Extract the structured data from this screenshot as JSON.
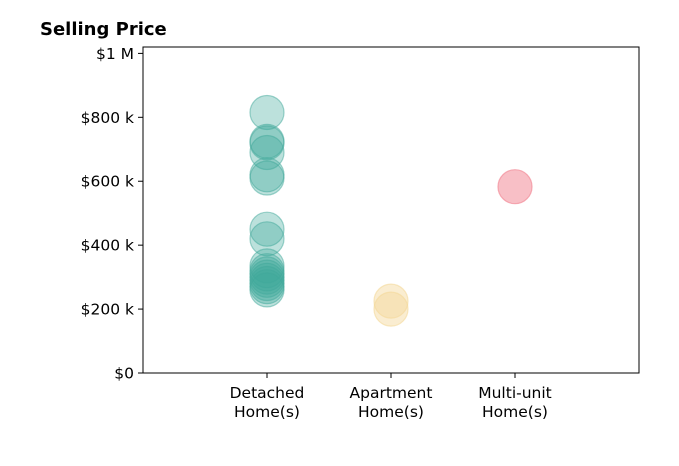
{
  "chart_data": {
    "type": "scatter",
    "title": "Selling Price",
    "xlabel": "",
    "ylabel": "",
    "categories": [
      [
        "Detached",
        "Home(s)"
      ],
      [
        "Apartment",
        "Home(s)"
      ],
      [
        "Multi-unit",
        "Home(s)"
      ]
    ],
    "y_ticks": [
      {
        "value": 0,
        "label": "$0"
      },
      {
        "value": 200000,
        "label": "$200 k"
      },
      {
        "value": 400000,
        "label": "$400 k"
      },
      {
        "value": 600000,
        "label": "$600 k"
      },
      {
        "value": 800000,
        "label": "$800 k"
      },
      {
        "value": 1000000,
        "label": "$1 M"
      }
    ],
    "ylim": [
      0,
      1020000
    ],
    "grid": false,
    "legend": "none",
    "series": [
      {
        "category_index": 0,
        "color": "#3fa89a",
        "opacity": 0.35,
        "values": [
          815000,
          725000,
          720000,
          690000,
          620000,
          610000,
          450000,
          420000,
          335000,
          320000,
          310000,
          300000,
          290000,
          280000,
          270000,
          260000
        ]
      },
      {
        "category_index": 1,
        "color": "#f3d89a",
        "opacity": 0.45,
        "values": [
          225000,
          200000
        ]
      },
      {
        "category_index": 2,
        "color": "#f28b98",
        "opacity": 0.55,
        "values": [
          583000
        ]
      }
    ]
  }
}
